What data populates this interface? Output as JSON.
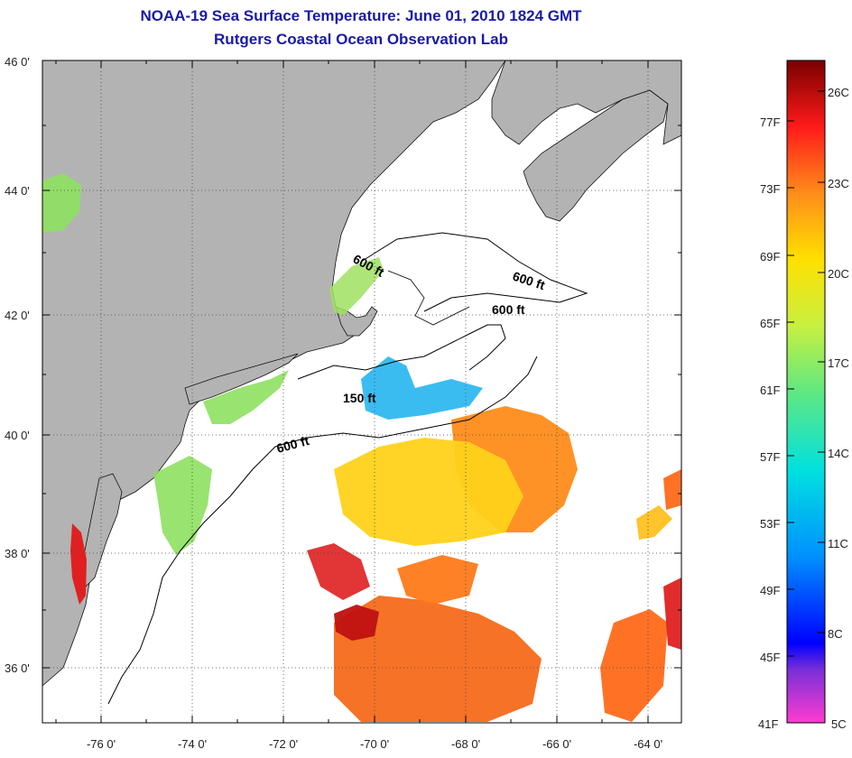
{
  "header": {
    "title": "NOAA-19 Sea Surface Temperature:  June 01, 2010 1824 GMT",
    "subtitle": "Rutgers Coastal Ocean Observation Lab"
  },
  "map": {
    "lat_labels": [
      "46 0'",
      "44 0'",
      "42 0'",
      "40 0'",
      "38 0'",
      "36 0'"
    ],
    "lon_labels": [
      "-76 0'",
      "-74 0'",
      "-72 0'",
      "-70 0'",
      "-68 0'",
      "-66 0'",
      "-64 0'"
    ],
    "contour_labels": [
      "600 ft",
      "600 ft",
      "600 ft",
      "150 ft",
      "600 ft"
    ]
  },
  "colorbar": {
    "fahrenheit": [
      "77F",
      "73F",
      "69F",
      "65F",
      "61F",
      "57F",
      "53F",
      "49F",
      "45F",
      "41F"
    ],
    "celsius": [
      "26C",
      "23C",
      "20C",
      "17C",
      "14C",
      "11C",
      "8C",
      "5C"
    ]
  },
  "colors": {
    "title": "#1a1aa8",
    "land": "#b3b3b3",
    "ocean": "#ffffff"
  }
}
